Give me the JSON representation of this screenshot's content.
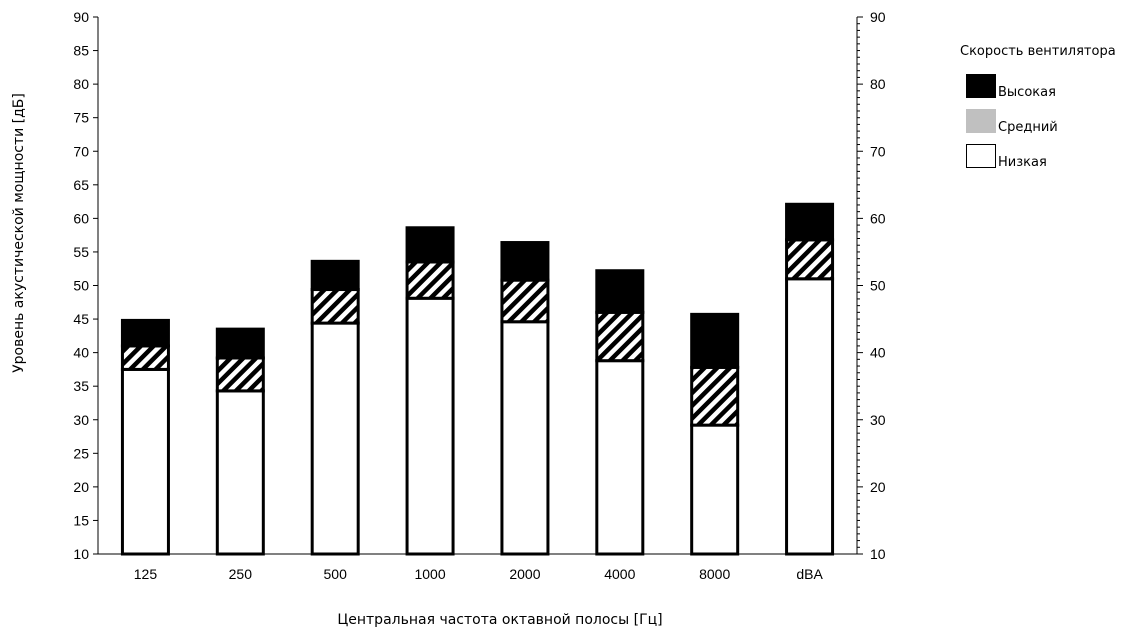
{
  "chart_data": {
    "type": "bar",
    "stacked": true,
    "categories": [
      "125",
      "250",
      "500",
      "1000",
      "2000",
      "4000",
      "8000",
      "dBA"
    ],
    "series": [
      {
        "name": "Низкая",
        "values": [
          37.5,
          34.3,
          44.4,
          48.1,
          44.6,
          38.8,
          29.2,
          51.0
        ],
        "color": "#ffffff",
        "pattern": "none"
      },
      {
        "name": "Средний",
        "values": [
          41.0,
          39.2,
          49.4,
          53.5,
          50.8,
          46.0,
          37.8,
          56.8
        ],
        "color": "#c0c0c0",
        "pattern": "diagonal-hatch"
      },
      {
        "name": "Высокая",
        "values": [
          44.8,
          43.5,
          53.6,
          58.6,
          56.4,
          52.2,
          45.7,
          62.1
        ],
        "color": "#000000",
        "pattern": "none"
      }
    ],
    "stack_note": "",
    "xlabel": "Центральная частота октавной полосы [Гц]",
    "ylabel": "Уровень акустической мощности [дБ]",
    "ylim": [
      10,
      90
    ],
    "yticks_left": [
      10,
      15,
      20,
      25,
      30,
      35,
      40,
      45,
      50,
      55,
      60,
      65,
      70,
      75,
      80,
      85,
      90
    ],
    "yticks_right": [
      10,
      20,
      30,
      40,
      50,
      60,
      70,
      80,
      90
    ],
    "grid": false,
    "legend": {
      "title": "Скорость вентилятора",
      "placement": "right",
      "entries": [
        "Высокая",
        "Средний",
        "Низкая"
      ]
    }
  }
}
